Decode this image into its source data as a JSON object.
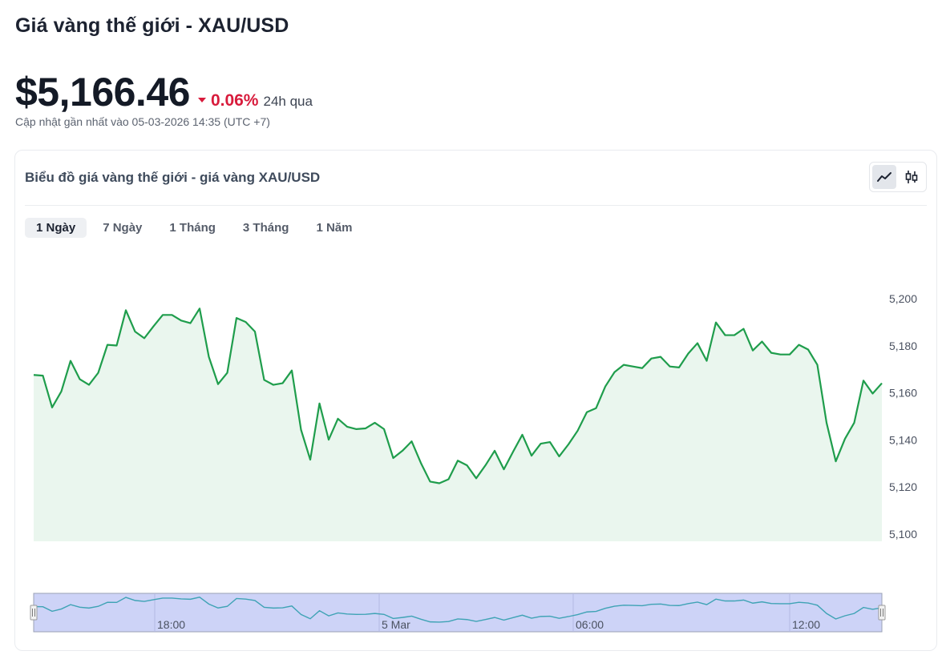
{
  "header": {
    "title": "Giá vàng thế giới - XAU/USD",
    "price": "$5,166.46",
    "change": "0.06%",
    "period": "24h qua",
    "updated": "Cập nhật gần nhất vào 05-03-2026 14:35 (UTC +7)"
  },
  "card": {
    "title": "Biểu đồ giá vàng thế giới - giá vàng XAU/USD",
    "tabs": [
      {
        "label": "1 Ngày",
        "active": true
      },
      {
        "label": "7 Ngày",
        "active": false
      },
      {
        "label": "1 Tháng",
        "active": false
      },
      {
        "label": "3 Tháng",
        "active": false
      },
      {
        "label": "1 Năm",
        "active": false
      }
    ],
    "chart_type_buttons": [
      {
        "icon": "line-chart-icon",
        "active": true
      },
      {
        "icon": "candlestick-icon",
        "active": false
      }
    ]
  },
  "colors": {
    "line": "#1f9d4c",
    "area": "#eaf6ee",
    "down": "#d81b3c",
    "navigator_fill": "#cdd3f7",
    "navigator_border": "#9aa0b5",
    "navigator_line": "#3fa3b5"
  },
  "chart_data": {
    "type": "area",
    "title": "Biểu đồ giá vàng thế giới - giá vàng XAU/USD",
    "xlabel": "",
    "ylabel": "",
    "ylim": [
      5100,
      5200
    ],
    "yticks": [
      "5,100",
      "5,120",
      "5,140",
      "5,160",
      "5,180",
      "5,200"
    ],
    "ytick_values": [
      5100,
      5120,
      5140,
      5160,
      5180,
      5200
    ],
    "grid": false,
    "navigator_labels": [
      "18:00",
      "5 Mar",
      "06:00",
      "12:00"
    ],
    "series": [
      {
        "values": [
          5167.6,
          5167.3,
          5153.8,
          5160.6,
          5173.6,
          5165.8,
          5163.4,
          5168.5,
          5180.4,
          5180.1,
          5195.1,
          5186.0,
          5183.2,
          5188.3,
          5193.1,
          5193.1,
          5190.7,
          5189.6,
          5195.8,
          5175.3,
          5163.7,
          5168.5,
          5191.8,
          5190.1,
          5186.0,
          5165.5,
          5163.4,
          5164.1,
          5169.5,
          5144.3,
          5131.6,
          5155.5,
          5140.1,
          5149.0,
          5145.6,
          5144.6,
          5144.9,
          5147.3,
          5144.6,
          5132.3,
          5135.4,
          5139.4,
          5130.2,
          5122.3,
          5121.6,
          5123.3,
          5131.2,
          5129.2,
          5123.7,
          5129.2,
          5135.4,
          5127.5,
          5135.0,
          5142.2,
          5133.3,
          5138.4,
          5139.1,
          5133.0,
          5138.1,
          5143.9,
          5151.8,
          5153.5,
          5162.7,
          5168.8,
          5171.9,
          5171.2,
          5170.5,
          5174.6,
          5175.3,
          5171.2,
          5170.8,
          5176.7,
          5181.1,
          5173.6,
          5189.9,
          5184.5,
          5184.5,
          5187.2,
          5178.0,
          5181.8,
          5177.0,
          5176.3,
          5176.3,
          5180.4,
          5178.4,
          5171.9,
          5147.3,
          5130.9,
          5140.5,
          5147.3,
          5165.2,
          5159.7,
          5164.1
        ]
      }
    ]
  }
}
